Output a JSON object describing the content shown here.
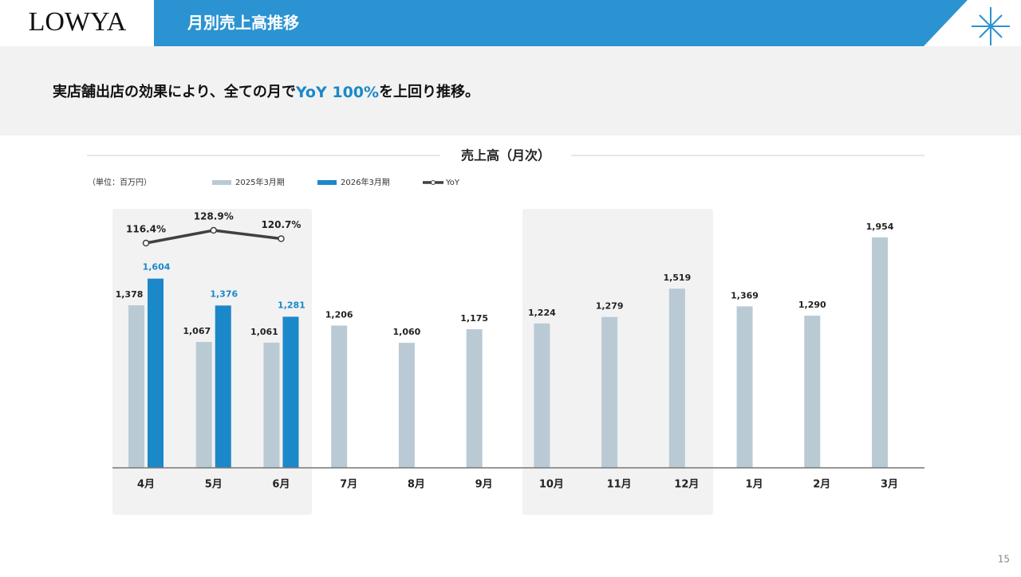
{
  "header": {
    "logo": "LOWYA",
    "title": "月別売上高推移",
    "page_number": "15"
  },
  "subtitle": {
    "parts": [
      "実店舗出店の効果により、全ての月で",
      "YoY 100%",
      "を上回り推移。"
    ]
  },
  "chart_data": {
    "type": "bar",
    "title": "売上高（月次）",
    "unit_label": "（単位：百万円）",
    "categories": [
      "4月",
      "5月",
      "6月",
      "7月",
      "8月",
      "9月",
      "10月",
      "11月",
      "12月",
      "1月",
      "2月",
      "3月"
    ],
    "ylim": [
      0,
      2000
    ],
    "y2lim": [
      100,
      150
    ],
    "series": [
      {
        "name": "2025年3月期",
        "color": "#b9cad4",
        "values": [
          1378,
          1067,
          1061,
          1206,
          1060,
          1175,
          1224,
          1279,
          1519,
          1369,
          1290,
          1954
        ],
        "value_labels": [
          "1,378",
          "1,067",
          "1,061",
          "1,206",
          "1,060",
          "1,175",
          "1,224",
          "1,279",
          "1,519",
          "1,369",
          "1,290",
          "1,954"
        ]
      },
      {
        "name": "2026年3月期",
        "color": "#1b88c9",
        "values": [
          1604,
          1376,
          1281,
          null,
          null,
          null,
          null,
          null,
          null,
          null,
          null,
          null
        ],
        "value_labels": [
          "1,604",
          "1,376",
          "1,281",
          null,
          null,
          null,
          null,
          null,
          null,
          null,
          null,
          null
        ]
      },
      {
        "name": "YoY",
        "color": "#404040",
        "axis": "y2",
        "values": [
          116.4,
          128.9,
          120.7,
          null,
          null,
          null,
          null,
          null,
          null,
          null,
          null,
          null
        ],
        "value_labels": [
          "116.4%",
          "128.9%",
          "120.7%",
          null,
          null,
          null,
          null,
          null,
          null,
          null,
          null,
          null
        ]
      }
    ]
  }
}
